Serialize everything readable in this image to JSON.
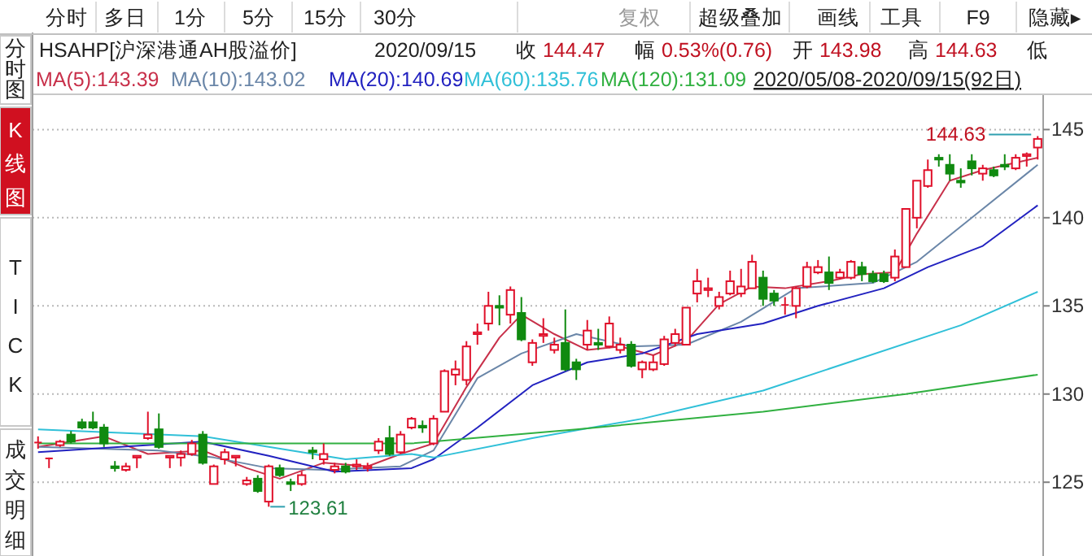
{
  "chart_data": {
    "type": "candlestick",
    "categories": [
      null,
      null,
      null,
      null,
      null,
      null,
      null,
      null,
      null,
      null,
      null,
      null,
      null,
      null,
      null,
      null,
      null,
      null,
      null,
      null,
      null,
      null,
      null,
      null,
      null,
      null,
      null,
      null,
      null,
      null,
      null,
      null,
      null,
      null,
      null,
      null,
      null,
      null,
      null,
      null,
      null,
      null,
      null,
      null,
      null,
      null,
      null,
      null,
      null,
      null,
      null,
      null,
      null,
      null,
      null,
      null,
      null,
      null,
      null,
      null,
      null,
      null,
      null,
      null,
      null,
      null,
      null,
      null,
      null,
      null,
      null,
      null,
      null,
      null,
      null,
      null,
      null,
      null,
      null,
      null,
      null,
      null,
      null,
      null,
      null,
      null,
      null,
      null,
      null,
      null,
      null,
      null
    ],
    "ohlc": [
      [
        127.2,
        127.6,
        126.9,
        127.25
      ],
      [
        126.3,
        126.4,
        125.8,
        126.35
      ],
      [
        127.1,
        127.4,
        127.0,
        127.3
      ],
      [
        127.7,
        127.9,
        127.2,
        127.3
      ],
      [
        128.4,
        128.6,
        128.0,
        128.1
      ],
      [
        128.4,
        129.0,
        128.0,
        128.1
      ],
      [
        128.1,
        128.3,
        127.0,
        127.2
      ],
      [
        125.9,
        126.2,
        125.6,
        125.8
      ],
      [
        125.7,
        126.1,
        125.6,
        125.9
      ],
      [
        126.4,
        126.5,
        125.8,
        126.5
      ],
      [
        127.5,
        129.0,
        127.4,
        127.7
      ],
      [
        128.0,
        128.9,
        126.9,
        127.0
      ],
      [
        126.4,
        126.5,
        125.8,
        126.5
      ],
      [
        126.4,
        126.8,
        125.9,
        126.6
      ],
      [
        126.6,
        127.4,
        126.5,
        127.2
      ],
      [
        127.7,
        127.9,
        126.0,
        126.1
      ],
      [
        124.9,
        126.0,
        124.9,
        125.9
      ],
      [
        126.3,
        126.9,
        126.0,
        126.7
      ],
      [
        126.4,
        126.5,
        125.9,
        126.5
      ],
      [
        124.9,
        125.3,
        124.8,
        125.1
      ],
      [
        125.2,
        125.4,
        124.4,
        124.5
      ],
      [
        123.9,
        126.0,
        123.61,
        125.9
      ],
      [
        125.8,
        126.0,
        125.3,
        125.4
      ],
      [
        125.0,
        125.2,
        124.5,
        124.9
      ],
      [
        124.9,
        125.6,
        124.8,
        125.4
      ],
      [
        126.8,
        127.0,
        126.3,
        126.7
      ],
      [
        126.3,
        127.2,
        126.0,
        126.6
      ],
      [
        125.7,
        126.1,
        125.5,
        125.9
      ],
      [
        125.9,
        126.1,
        125.5,
        125.6
      ],
      [
        125.9,
        126.3,
        125.7,
        126.0
      ],
      [
        125.8,
        126.1,
        125.6,
        125.9
      ],
      [
        126.8,
        127.5,
        126.6,
        127.3
      ],
      [
        127.5,
        128.2,
        126.5,
        126.6
      ],
      [
        126.7,
        127.9,
        126.6,
        127.7
      ],
      [
        128.1,
        128.7,
        128.0,
        128.6
      ],
      [
        128.2,
        128.5,
        127.8,
        128.1
      ],
      [
        127.2,
        128.8,
        127.1,
        128.6
      ],
      [
        129.0,
        131.4,
        129.0,
        131.3
      ],
      [
        131.1,
        131.9,
        130.5,
        131.4
      ],
      [
        130.8,
        133.0,
        130.5,
        132.7
      ],
      [
        133.4,
        134.0,
        132.8,
        133.5
      ],
      [
        134.0,
        135.8,
        133.6,
        135.0
      ],
      [
        135.0,
        135.6,
        133.9,
        134.9
      ],
      [
        134.5,
        136.1,
        134.0,
        135.9
      ],
      [
        134.6,
        135.5,
        133.0,
        133.1
      ],
      [
        131.8,
        133.1,
        131.6,
        132.9
      ],
      [
        133.3,
        134.3,
        132.9,
        133.4
      ],
      [
        132.5,
        133.2,
        132.3,
        132.8
      ],
      [
        132.9,
        134.8,
        131.3,
        131.4
      ],
      [
        131.8,
        132.0,
        130.8,
        131.4
      ],
      [
        132.8,
        134.2,
        132.5,
        133.6
      ],
      [
        132.9,
        133.7,
        132.5,
        132.8
      ],
      [
        132.7,
        134.4,
        132.6,
        134.0
      ],
      [
        132.5,
        133.2,
        132.3,
        132.8
      ],
      [
        132.8,
        133.0,
        131.5,
        131.6
      ],
      [
        131.4,
        131.9,
        130.9,
        131.8
      ],
      [
        131.4,
        132.2,
        131.3,
        131.8
      ],
      [
        131.7,
        133.3,
        131.6,
        133.1
      ],
      [
        132.9,
        133.7,
        132.7,
        133.4
      ],
      [
        132.8,
        134.9,
        132.8,
        134.9
      ],
      [
        135.7,
        137.1,
        135.2,
        136.4
      ],
      [
        135.9,
        136.6,
        135.5,
        136.0
      ],
      [
        135.0,
        135.8,
        134.8,
        135.5
      ],
      [
        135.7,
        137.0,
        135.6,
        136.4
      ],
      [
        135.7,
        137.1,
        135.5,
        136.1
      ],
      [
        136.0,
        137.9,
        136.0,
        137.5
      ],
      [
        136.6,
        137.0,
        135.0,
        135.4
      ],
      [
        135.7,
        135.9,
        135.0,
        135.3
      ],
      [
        135.0,
        135.5,
        134.5,
        135.05
      ],
      [
        135.0,
        136.1,
        134.3,
        136.0
      ],
      [
        136.1,
        137.5,
        136.0,
        137.2
      ],
      [
        136.9,
        137.6,
        136.8,
        137.2
      ],
      [
        136.9,
        137.8,
        135.9,
        136.3
      ],
      [
        136.6,
        137.1,
        136.5,
        136.9
      ],
      [
        136.6,
        137.6,
        136.5,
        137.5
      ],
      [
        137.2,
        137.5,
        136.4,
        136.8
      ],
      [
        136.8,
        137.0,
        136.3,
        136.4
      ],
      [
        136.8,
        137.0,
        136.3,
        136.4
      ],
      [
        136.6,
        138.2,
        136.4,
        137.8
      ],
      [
        137.2,
        140.5,
        137.2,
        140.5
      ],
      [
        140.0,
        142.1,
        139.4,
        142.1
      ],
      [
        141.8,
        143.3,
        141.7,
        142.7
      ],
      [
        143.4,
        143.6,
        142.9,
        143.3
      ],
      [
        143.0,
        143.6,
        142.1,
        142.5
      ],
      [
        142.1,
        142.8,
        141.7,
        142.0
      ],
      [
        143.2,
        143.6,
        142.4,
        142.8
      ],
      [
        142.5,
        143.0,
        142.1,
        142.8
      ],
      [
        142.7,
        142.9,
        142.3,
        142.4
      ],
      [
        143.0,
        143.6,
        142.7,
        142.9
      ],
      [
        142.8,
        143.6,
        142.7,
        143.4
      ],
      [
        143.5,
        143.7,
        142.9,
        143.6
      ],
      [
        143.98,
        144.63,
        143.3,
        144.47
      ]
    ],
    "series": [
      {
        "type": "line",
        "name": "MA(5):143.39",
        "color": "#c8304a",
        "values": [
          127.0,
          null,
          null,
          null,
          null,
          null,
          127.6,
          null,
          null,
          null,
          126.6,
          null,
          null,
          null,
          null,
          126.8,
          null,
          null,
          null,
          125.8,
          null,
          null,
          125.2,
          null,
          null,
          null,
          126.1,
          null,
          null,
          null,
          125.9,
          null,
          null,
          126.6,
          null,
          null,
          127.2,
          null,
          null,
          130.4,
          null,
          null,
          133.2,
          null,
          134.5,
          null,
          null,
          133.4,
          null,
          null,
          132.5,
          null,
          null,
          132.7,
          null,
          null,
          132.2,
          null,
          null,
          133.0,
          null,
          null,
          135.1,
          null,
          null,
          136.1,
          null,
          null,
          136.0,
          null,
          null,
          null,
          136.4,
          null,
          null,
          136.8,
          null,
          null,
          136.9,
          null,
          139.1,
          null,
          null,
          142.1,
          null,
          null,
          142.7,
          null,
          null,
          null,
          null,
          143.4
        ]
      },
      {
        "type": "line",
        "name": "MA(10):143.02",
        "color": "#6a86a8",
        "values": [
          127.0,
          null,
          null,
          null,
          null,
          null,
          null,
          null,
          null,
          null,
          null,
          126.8,
          null,
          null,
          null,
          null,
          126.4,
          null,
          null,
          null,
          null,
          125.8,
          null,
          null,
          null,
          null,
          125.7,
          null,
          null,
          null,
          null,
          null,
          null,
          125.9,
          null,
          null,
          126.8,
          null,
          null,
          null,
          130.9,
          null,
          null,
          null,
          132.3,
          null,
          null,
          null,
          null,
          133.4,
          null,
          null,
          null,
          null,
          132.7,
          null,
          null,
          null,
          null,
          132.8,
          null,
          null,
          null,
          null,
          134.1,
          null,
          null,
          null,
          null,
          136.0,
          null,
          null,
          null,
          null,
          null,
          null,
          136.3,
          null,
          null,
          null,
          137.5,
          null,
          null,
          null,
          null,
          null,
          140.5,
          null,
          null,
          null,
          null,
          143.0
        ]
      },
      {
        "type": "line",
        "name": "MA(20):140.69",
        "color": "#2222c0",
        "values": [
          126.7,
          null,
          null,
          null,
          null,
          null,
          null,
          null,
          null,
          null,
          null,
          null,
          null,
          null,
          null,
          127.3,
          null,
          null,
          null,
          null,
          null,
          126.5,
          null,
          null,
          null,
          null,
          null,
          125.6,
          null,
          null,
          null,
          null,
          null,
          null,
          125.8,
          null,
          126.3,
          null,
          null,
          null,
          128.1,
          null,
          null,
          null,
          null,
          130.5,
          null,
          null,
          null,
          null,
          131.8,
          null,
          null,
          null,
          null,
          132.3,
          null,
          null,
          null,
          null,
          133.4,
          null,
          null,
          null,
          null,
          null,
          134.0,
          null,
          null,
          null,
          null,
          135.0,
          null,
          null,
          null,
          null,
          null,
          136.0,
          null,
          null,
          null,
          137.2,
          null,
          null,
          null,
          null,
          138.4,
          null,
          null,
          null,
          null,
          140.7
        ]
      },
      {
        "type": "line",
        "name": "MA(60):135.76",
        "color": "#30c0d8",
        "values": [
          128.0,
          null,
          null,
          null,
          null,
          null,
          null,
          null,
          null,
          null,
          null,
          null,
          null,
          null,
          null,
          127.6,
          null,
          null,
          null,
          null,
          null,
          127.0,
          null,
          null,
          null,
          null,
          null,
          null,
          126.3,
          null,
          null,
          null,
          null,
          null,
          126.6,
          null,
          126.4,
          null,
          null,
          null,
          null,
          null,
          null,
          null,
          null,
          127.5,
          null,
          null,
          null,
          null,
          null,
          null,
          null,
          null,
          null,
          128.6,
          null,
          null,
          null,
          null,
          null,
          null,
          null,
          null,
          null,
          null,
          130.2,
          null,
          null,
          null,
          null,
          null,
          null,
          null,
          null,
          null,
          null,
          null,
          null,
          null,
          null,
          null,
          null,
          null,
          133.9,
          null,
          null,
          null,
          null,
          null,
          null,
          135.8
        ]
      },
      {
        "type": "line",
        "name": "MA(120):131.09",
        "color": "#30b040",
        "values": [
          127.2,
          null,
          null,
          null,
          null,
          null,
          null,
          null,
          null,
          null,
          null,
          null,
          null,
          null,
          null,
          null,
          null,
          null,
          null,
          null,
          null,
          null,
          null,
          null,
          null,
          null,
          null,
          null,
          null,
          null,
          null,
          null,
          null,
          null,
          127.2,
          null,
          null,
          null,
          null,
          null,
          null,
          null,
          null,
          null,
          null,
          null,
          null,
          null,
          null,
          128.0,
          null,
          null,
          null,
          null,
          null,
          null,
          null,
          null,
          null,
          null,
          null,
          null,
          null,
          null,
          null,
          null,
          129.0,
          null,
          null,
          null,
          null,
          null,
          null,
          null,
          null,
          null,
          null,
          null,
          null,
          130.0,
          null,
          null,
          null,
          null,
          null,
          null,
          null,
          null,
          null,
          null,
          null,
          131.1
        ]
      }
    ],
    "ylim": [
      121,
      147
    ],
    "yticks": [
      125,
      130,
      135,
      140,
      145
    ],
    "grid": "y",
    "tick_labels": "y",
    "legend": "top left",
    "annotations": [
      "分时",
      "多日",
      "1分",
      "5分",
      "15分",
      "30分",
      "复权",
      "超级叠加",
      "画线",
      "工具",
      "F9",
      "隐藏▸",
      "分时图",
      "K线图",
      "TICK",
      "成交明细",
      "HSAHP[沪深港通AH股溢价]",
      "2020/09/15",
      "收 144.47",
      "幅 0.53%(0.76)",
      "开 143.98",
      "高 144.63",
      "低",
      "2020/05/08-2020/09/15(92日)",
      "144.63",
      "123.61"
    ]
  }
}
